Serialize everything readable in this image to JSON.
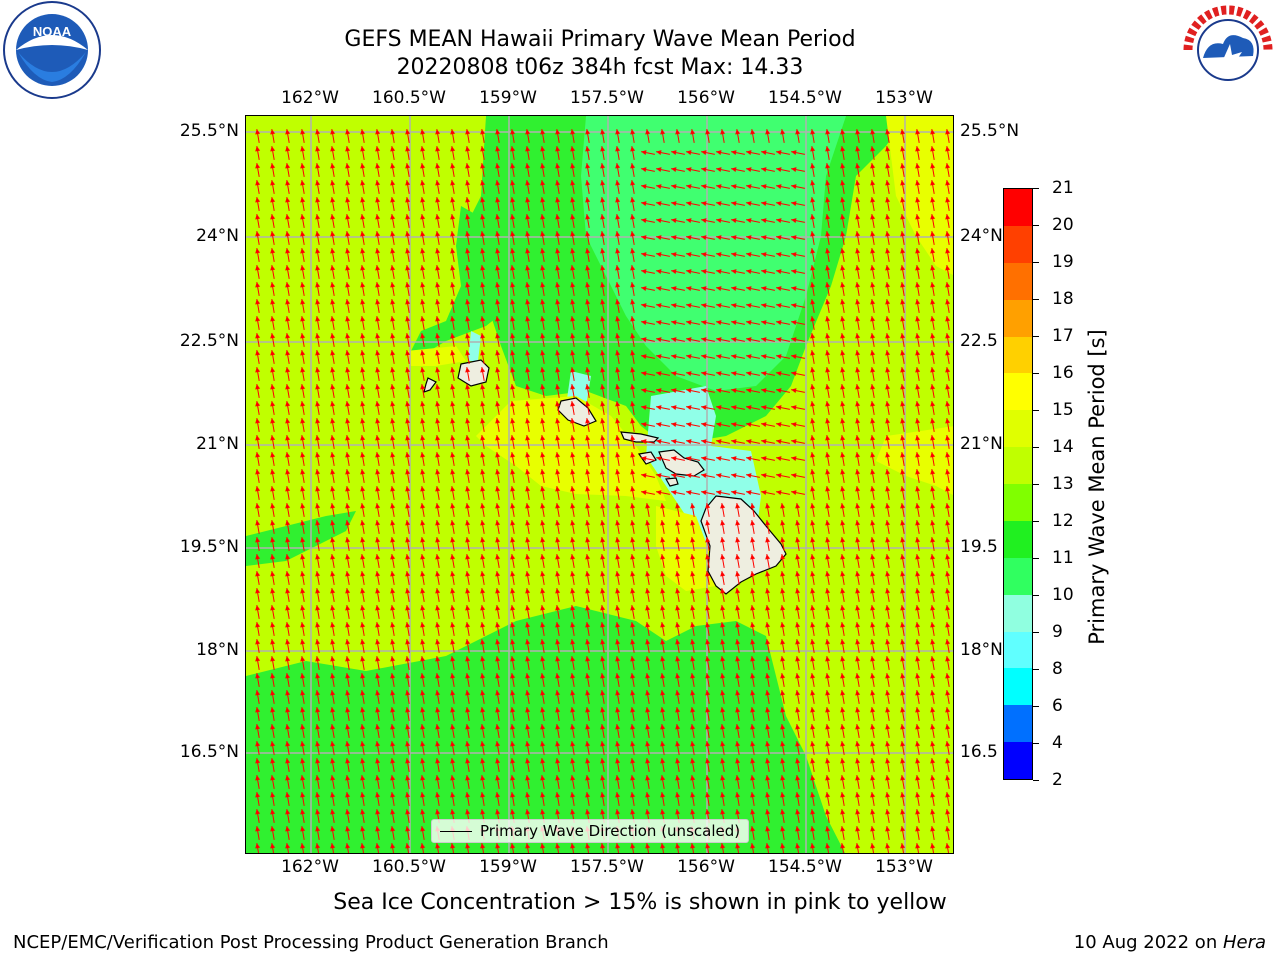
{
  "header": {
    "title_line1": "GEFS MEAN Hawaii Primary Wave Mean Period",
    "title_line2": "20220808 t06z 384h fcst   Max: 14.33"
  },
  "logos": {
    "left": {
      "name": "NOAA",
      "ring_text": "NATIONAL OCEANIC AND ATMOSPHERIC ADMINISTRATION · U.S. DEPARTMENT OF COMMERCE"
    },
    "right": {
      "name": "NATIONAL WEATHER SERVICE"
    }
  },
  "map": {
    "lon_ticks": [
      "162°W",
      "160.5°W",
      "159°W",
      "157.5°W",
      "156°W",
      "154.5°W",
      "153°W"
    ],
    "lat_ticks": [
      "25.5°N",
      "24°N",
      "22.5°N",
      "21°N",
      "19.5°N",
      "18°N",
      "16.5°N"
    ],
    "right_lat_ticks": [
      "25.5°N",
      "24°N",
      "22.5",
      "21°N",
      "19.5",
      "18°N",
      "16.5"
    ],
    "legend_label": "Primary Wave Direction (unscaled)",
    "arrow_color": "#ff0000",
    "land_color": "#eeeee0",
    "grid_color": "#b0b0b0"
  },
  "colorbar": {
    "label": "Primary Wave Mean Period [s]",
    "levels": [
      "2",
      "4",
      "6",
      "8",
      "9",
      "10",
      "11",
      "12",
      "13",
      "14",
      "15",
      "16",
      "17",
      "18",
      "19",
      "20",
      "21"
    ],
    "colors": [
      "#0000ff",
      "#0070ff",
      "#00ffff",
      "#60ffff",
      "#90ffe0",
      "#30ff60",
      "#20f020",
      "#80ff00",
      "#c0ff00",
      "#e0ff00",
      "#ffff00",
      "#ffd000",
      "#ffa000",
      "#ff7000",
      "#ff4000",
      "#ff0000"
    ]
  },
  "notes": {
    "sea_ice": "Sea Ice Concentration > 15% is shown in pink to yellow"
  },
  "footer": {
    "left": "NCEP/EMC/Verification Post Processing Product Generation Branch",
    "right_prefix": "10 Aug 2022 on ",
    "right_machine": "Hera"
  }
}
